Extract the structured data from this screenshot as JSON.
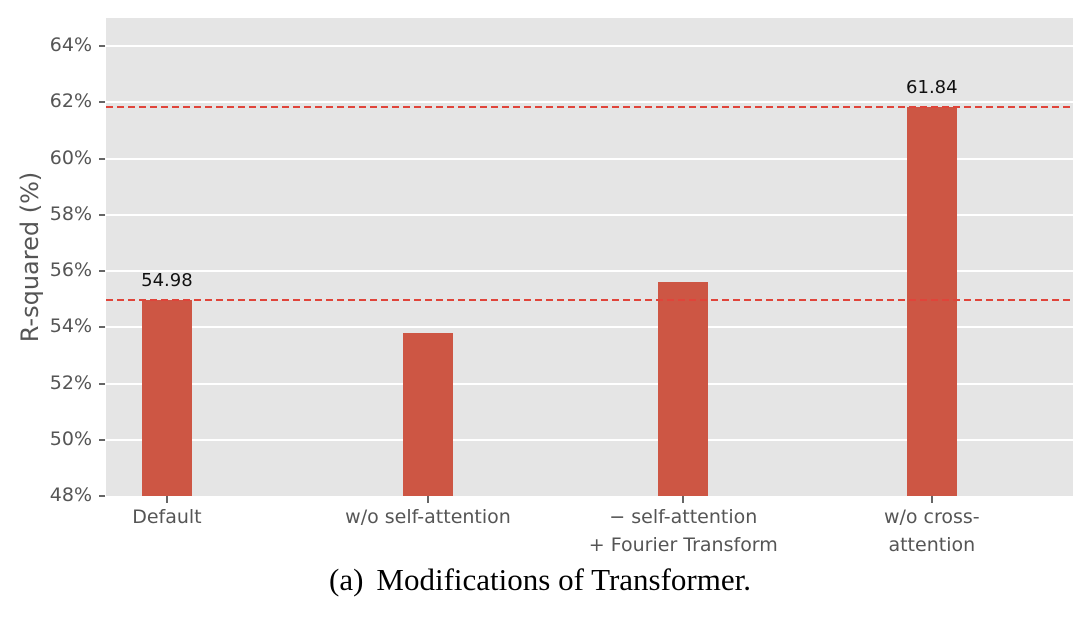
{
  "figure": {
    "caption_label": "(a)",
    "caption_text": "Modifications of Transformer."
  },
  "chart_data": {
    "type": "bar",
    "title": "",
    "xlabel": "",
    "ylabel": "R-squared (%)",
    "categories": [
      "Default",
      "w/o self-attention",
      "− self-attention\n+ Fourier Transform",
      "w/o cross-attention"
    ],
    "values": [
      54.98,
      53.8,
      55.6,
      61.84
    ],
    "bar_value_labels": [
      "54.98",
      "",
      "",
      "61.84"
    ],
    "ylim": [
      48,
      65
    ],
    "yticks": [
      48,
      50,
      52,
      54,
      56,
      58,
      60,
      62,
      64
    ],
    "ytick_labels": [
      "48%",
      "50%",
      "52%",
      "54%",
      "56%",
      "58%",
      "60%",
      "62%",
      "64%"
    ],
    "reference_lines": [
      54.98,
      61.84
    ],
    "grid": true,
    "legend": "none",
    "bar_centers_frac": [
      0.063,
      0.333,
      0.597,
      0.854
    ],
    "colors": {
      "bar": "#cd5644",
      "reference_line": "#e0443a",
      "plot_bg": "#e5e5e5",
      "grid": "#ffffff",
      "tick_text": "#555555",
      "annotation_text": "#111111"
    }
  }
}
